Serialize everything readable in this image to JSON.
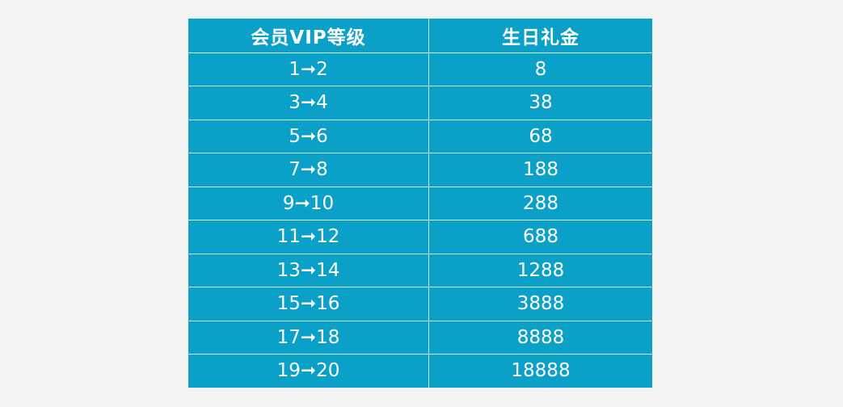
{
  "table": {
    "headers": [
      "会员VIP等级",
      "生日礼金"
    ],
    "rows": [
      {
        "level": "1➞2",
        "gift": "8"
      },
      {
        "level": "3➞4",
        "gift": "38"
      },
      {
        "level": "5➞6",
        "gift": "68"
      },
      {
        "level": "7➞8",
        "gift": "188"
      },
      {
        "level": "9➞10",
        "gift": "288"
      },
      {
        "level": "11➞12",
        "gift": "688"
      },
      {
        "level": "13➞14",
        "gift": "1288"
      },
      {
        "level": "15➞16",
        "gift": "3888"
      },
      {
        "level": "17➞18",
        "gift": "8888"
      },
      {
        "level": "19➞20",
        "gift": "18888"
      }
    ]
  },
  "colors": {
    "row_bg": "#0aa0c8",
    "grid": "#d9ecf2",
    "text": "#ffffff",
    "page_bg": "#f3f3f3"
  }
}
